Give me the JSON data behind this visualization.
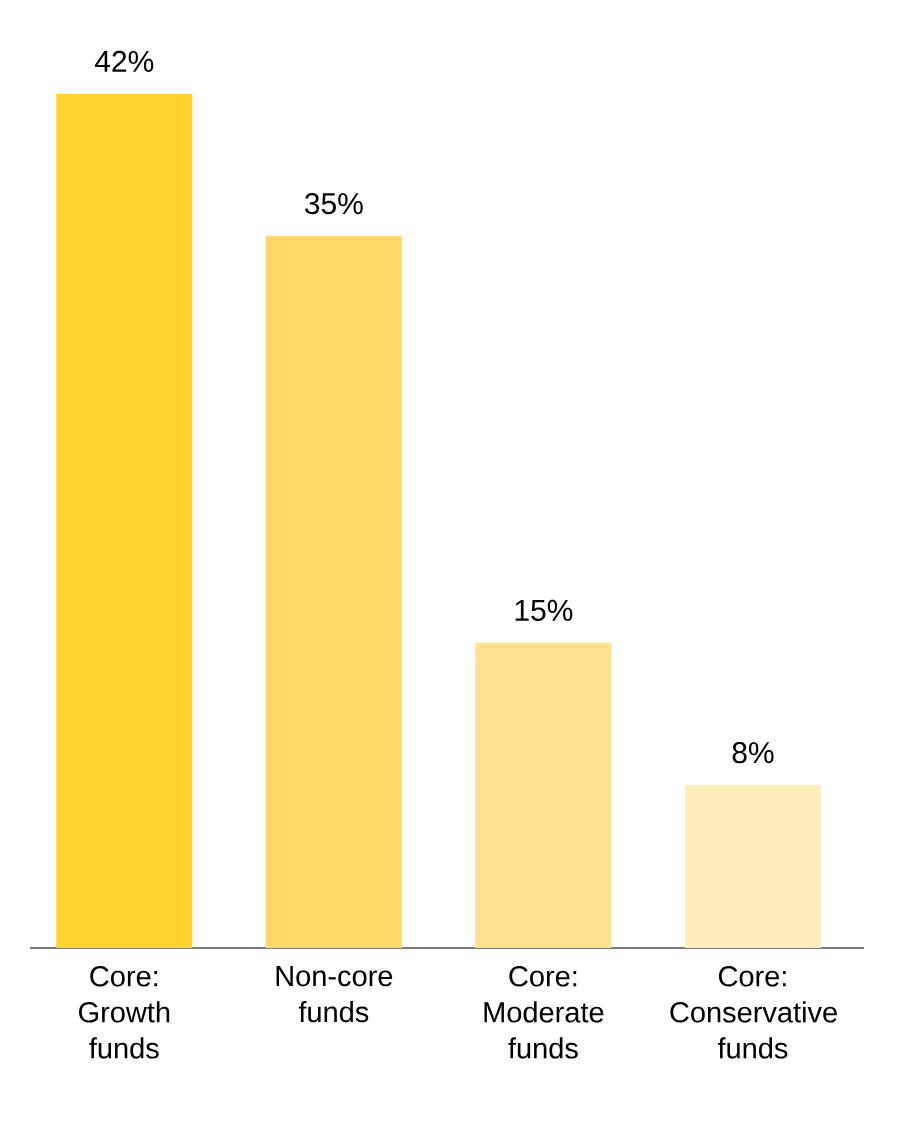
{
  "chart_data": {
    "type": "bar",
    "categories": [
      "Core: Growth funds",
      "Non-core funds",
      "Core: Moderate funds",
      "Core: Conservative funds"
    ],
    "values": [
      42,
      35,
      15,
      8
    ],
    "colors": [
      "#ffd22e",
      "#ffd76a",
      "#ffe18f",
      "#ffecbb"
    ],
    "value_labels": [
      "42%",
      "35%",
      "15%",
      "8%"
    ]
  }
}
